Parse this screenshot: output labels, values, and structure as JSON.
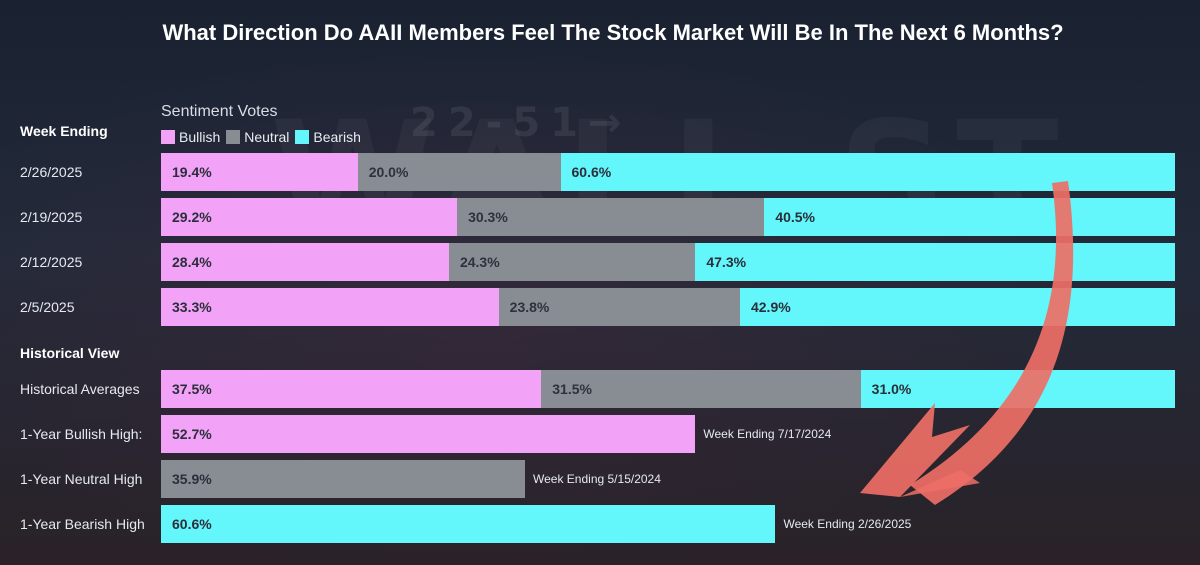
{
  "title": "What Direction Do AAII Members Feel The Stock Market Will Be In The Next 6 Months?",
  "watermark": {
    "big": "WALL ST",
    "small": "22-51→"
  },
  "colors": {
    "bullish": "#f2a2f7",
    "neutral": "#888c93",
    "bearish": "#63f6fb",
    "arrow": "#ee6f66"
  },
  "chart_data": {
    "type": "bar",
    "orientation": "horizontal-stacked",
    "title": "What Direction Do AAII Members Feel The Stock Market Will Be In The Next 6 Months?",
    "legend_title": "Sentiment Votes",
    "legend": [
      "Bullish",
      "Neutral",
      "Bearish"
    ],
    "sections": {
      "weekly": "Week Ending",
      "historical": "Historical View"
    },
    "weekly": [
      {
        "label": "2/26/2025",
        "values": [
          19.4,
          20.0,
          60.6
        ],
        "texts": [
          "19.4%",
          "20.0%",
          "60.6%"
        ]
      },
      {
        "label": "2/19/2025",
        "values": [
          29.2,
          30.3,
          40.5
        ],
        "texts": [
          "29.2%",
          "30.3%",
          "40.5%"
        ]
      },
      {
        "label": "2/12/2025",
        "values": [
          28.4,
          24.3,
          47.3
        ],
        "texts": [
          "28.4%",
          "24.3%",
          "47.3%"
        ]
      },
      {
        "label": "2/5/2025",
        "values": [
          33.3,
          23.8,
          42.9
        ],
        "texts": [
          "33.3%",
          "23.8%",
          "42.9%"
        ]
      }
    ],
    "historical_averages": {
      "label": "Historical Averages",
      "values": [
        37.5,
        31.5,
        31.0
      ],
      "texts": [
        "37.5%",
        "31.5%",
        "31.0%"
      ]
    },
    "highs": [
      {
        "label": "1-Year Bullish High:",
        "series": "Bullish",
        "value": 52.7,
        "text": "52.7%",
        "note": "Week Ending 7/17/2024"
      },
      {
        "label": "1-Year Neutral High",
        "series": "Neutral",
        "value": 35.9,
        "text": "35.9%",
        "note": "Week Ending 5/15/2024"
      },
      {
        "label": "1-Year Bearish High",
        "series": "Bearish",
        "value": 60.6,
        "text": "60.6%",
        "note": "Week Ending 2/26/2025"
      }
    ]
  }
}
